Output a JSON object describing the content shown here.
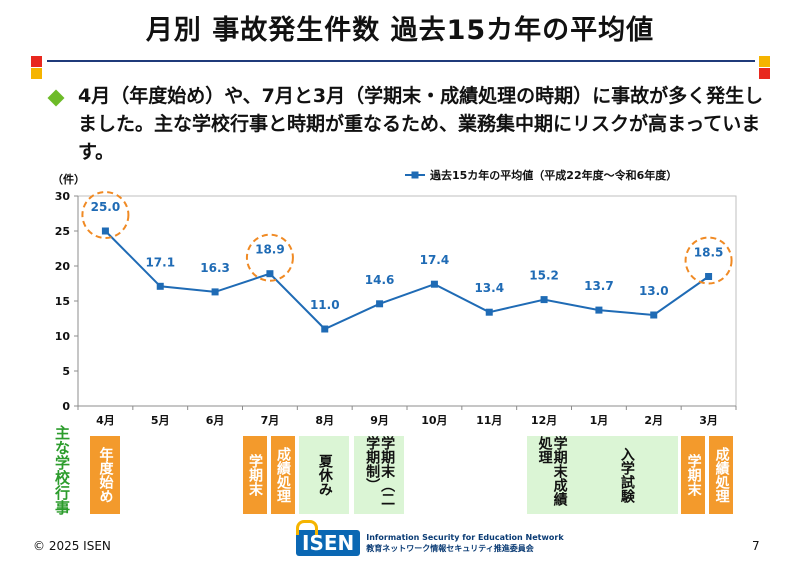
{
  "slide": {
    "title": "月別 事故発生件数 過去15カ年の平均値",
    "body": "4月（年度始め）や、7月と3月（学期末・成績処理の時期）に事故が多く発生しました。主な学校行事と時期が重なるため、業務集中期にリスクが高まっています。",
    "events_label": "主な学校行事",
    "footer_copyright": "© 2025 ISEN",
    "page_number": "7",
    "logo_text": "ISEN",
    "logo_subtitle_en": "Information Security for Education Network",
    "logo_subtitle_ja": "教育ネットワーク情報セキュリティ推進委員会"
  },
  "colors": {
    "line": "#1f6bb5",
    "highlight_circle": "#f08a24",
    "event_orange": "#f39a2c",
    "event_green": "#dbf5d5",
    "bullet": "#6dbb28",
    "accent_red": "#e8281e",
    "accent_yellow": "#f5b400"
  },
  "chart_data": {
    "type": "line",
    "ylabel": "（件）",
    "ylim": [
      0,
      30
    ],
    "yticks": [
      "0",
      "5",
      "10",
      "15",
      "20",
      "25",
      "30"
    ],
    "categories": [
      "4月",
      "5月",
      "6月",
      "7月",
      "8月",
      "9月",
      "10月",
      "11月",
      "12月",
      "1月",
      "2月",
      "3月"
    ],
    "series": [
      {
        "name": "過去15カ年の平均値（平成22年度～令和6年度）",
        "values": [
          25.0,
          17.1,
          16.3,
          18.9,
          11.0,
          14.6,
          17.4,
          13.4,
          15.2,
          13.7,
          13.0,
          18.5
        ],
        "labels": [
          "25.0",
          "17.1",
          "16.3",
          "18.9",
          "11.0",
          "14.6",
          "17.4",
          "13.4",
          "15.2",
          "13.7",
          "13.0",
          "18.5"
        ]
      }
    ],
    "highlighted": [
      "4月",
      "7月",
      "3月"
    ],
    "legend_position": "top-right",
    "grid": false
  },
  "events": [
    {
      "label": "年度始め",
      "month": "4月",
      "color": "orange"
    },
    {
      "label": "学期末",
      "month": "7月",
      "color": "orange"
    },
    {
      "label": "成績処理",
      "month": "7月",
      "color": "orange"
    },
    {
      "label": "夏休み",
      "month": "8月",
      "color": "green"
    },
    {
      "label": "学期末（二学期制）",
      "month": "9月",
      "color": "green"
    },
    {
      "label": "学期末成績処理",
      "month": "12月",
      "color": "green"
    },
    {
      "label": "入学試験",
      "month": "2月",
      "color": "green"
    },
    {
      "label": "学期末",
      "month": "3月",
      "color": "orange"
    },
    {
      "label": "成績処理",
      "month": "3月",
      "color": "orange"
    }
  ]
}
